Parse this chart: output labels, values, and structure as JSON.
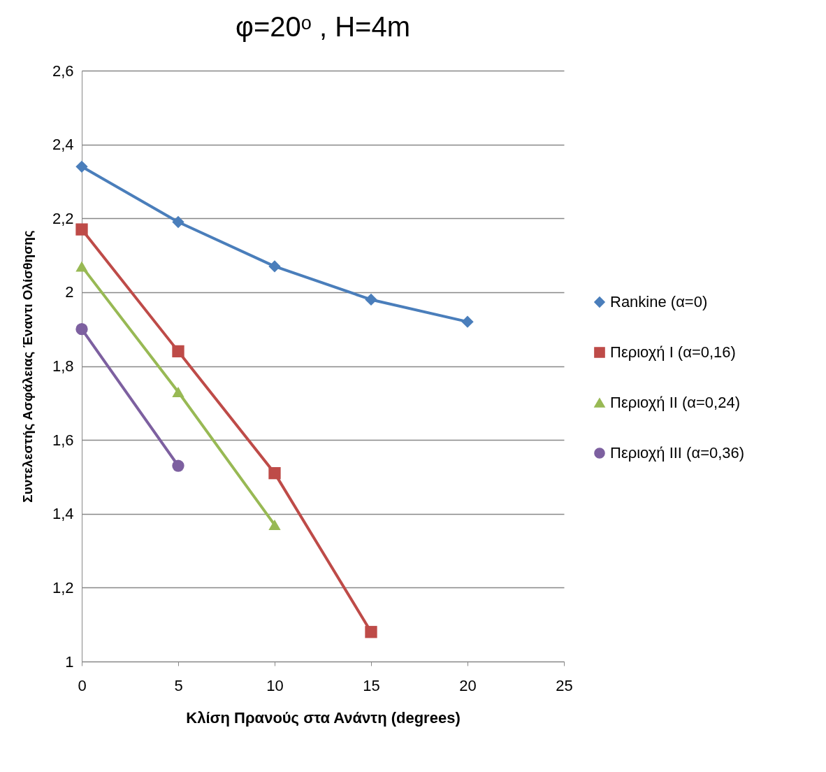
{
  "chart_data": {
    "type": "line",
    "title": "φ=20ᵒ , H=4m",
    "xlabel": "Κλίση Πρανούς στα Ανάντη (degrees)",
    "ylabel": "Συντελεστής Ασφάλειας Έναντι Ολίσθησης",
    "x": [
      0,
      5,
      10,
      15,
      20
    ],
    "series": [
      {
        "name": "Rankine (α=0)",
        "color": "#4a7ebb",
        "marker": "diamond",
        "values": [
          2.34,
          2.19,
          2.07,
          1.98,
          1.92
        ]
      },
      {
        "name": "Περιοχή I (α=0,16)",
        "color": "#be4b48",
        "marker": "square",
        "values": [
          2.17,
          1.84,
          1.51,
          1.08,
          null
        ]
      },
      {
        "name": "Περιοχή II (α=0,24)",
        "color": "#98b954",
        "marker": "triangle",
        "values": [
          2.07,
          1.73,
          1.37,
          null,
          null
        ]
      },
      {
        "name": "Περιοχή III (α=0,36)",
        "color": "#7d60a0",
        "marker": "circle",
        "values": [
          1.9,
          1.53,
          null,
          null,
          null
        ]
      }
    ],
    "xlim": [
      0,
      25
    ],
    "xticks": [
      0,
      5,
      10,
      15,
      20,
      25
    ],
    "ylim": [
      1,
      2.6
    ],
    "yticks": [
      1,
      {
        "value": 1.2,
        "label": "1,2"
      },
      {
        "value": 1.4,
        "label": "1,4"
      },
      {
        "value": 1.6,
        "label": "1,6"
      },
      {
        "value": 1.8,
        "label": "1,8"
      },
      2,
      {
        "value": 2.2,
        "label": "2,2"
      },
      {
        "value": 2.4,
        "label": "2,4"
      },
      {
        "value": 2.6,
        "label": "2,6"
      }
    ],
    "grid": "y",
    "legend": "right",
    "line_style": "solid"
  }
}
